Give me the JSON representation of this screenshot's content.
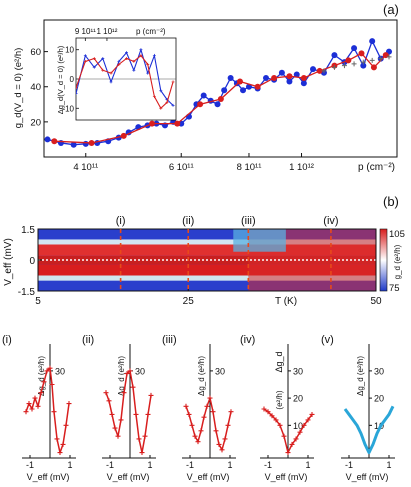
{
  "chart_data": [
    {
      "panel_label": "(a)",
      "type": "scatter",
      "ylabel": "g_d(V_d = 0) (e²/h)",
      "xlabel": "p (cm⁻²)",
      "x_scale": "log",
      "x_ticks": [
        {
          "value": 400000000000,
          "label": "4 10¹¹"
        },
        {
          "value": 600000000000,
          "label": "6 10¹¹"
        },
        {
          "value": 800000000000,
          "label": "8 10¹¹"
        },
        {
          "value": 1000000000000,
          "label": "1 10¹²"
        }
      ],
      "xlim": [
        335000000000,
        1500000000000
      ],
      "y_ticks": [
        20,
        40,
        60
      ],
      "ylim": [
        0,
        78
      ],
      "series": [
        {
          "color": "#1c2fd6",
          "marker": "circle",
          "x": [
            340000000000,
            360000000000,
            380000000000,
            400000000000,
            420000000000,
            440000000000,
            460000000000,
            480000000000,
            500000000000,
            520000000000,
            540000000000,
            560000000000,
            580000000000,
            600000000000,
            620000000000,
            640000000000,
            660000000000,
            680000000000,
            700000000000,
            720000000000,
            740000000000,
            760000000000,
            780000000000,
            800000000000,
            830000000000,
            860000000000,
            890000000000,
            920000000000,
            950000000000,
            980000000000,
            1010000000000,
            1050000000000,
            1100000000000,
            1150000000000,
            1200000000000,
            1250000000000,
            1300000000000,
            1350000000000,
            1400000000000,
            1450000000000
          ],
          "y": [
            10,
            8,
            7,
            7.5,
            8,
            9,
            11,
            14,
            17,
            18,
            19,
            18,
            20,
            19,
            23,
            30,
            35,
            32,
            30,
            38,
            45,
            42,
            38,
            40,
            39,
            45,
            44,
            48,
            43,
            47,
            42,
            50,
            48,
            58,
            54,
            62,
            52,
            66,
            56,
            60
          ]
        },
        {
          "color": "#d81e1e",
          "marker": "circle",
          "x": [
            350000000000,
            410000000000,
            470000000000,
            530000000000,
            590000000000,
            650000000000,
            710000000000,
            770000000000,
            830000000000,
            890000000000,
            950000000000,
            1010000000000,
            1080000000000,
            1150000000000,
            1220000000000,
            1290000000000,
            1360000000000,
            1430000000000
          ],
          "y": [
            9,
            8,
            12,
            19,
            19,
            30,
            33,
            43,
            40,
            45,
            46,
            45,
            49,
            52,
            55,
            59,
            51,
            58
          ]
        },
        {
          "color": "#666666",
          "marker": "plus",
          "x": [
            1100000000000,
            1150000000000,
            1200000000000,
            1250000000000,
            1300000000000,
            1350000000000,
            1400000000000,
            1450000000000
          ],
          "y": [
            49,
            51,
            52,
            53,
            54,
            55,
            56,
            57
          ]
        }
      ],
      "inset": {
        "ylabel": "Δg_d(V_d = 0) (e²/h)",
        "xlabel": "p (cm⁻²)",
        "x_ticks": [
          {
            "value": 900000000000,
            "label": "9 10¹¹"
          },
          {
            "value": 1000000000000,
            "label": "1 10¹²"
          }
        ],
        "xlim": [
          860000000000,
          1400000000000
        ],
        "y_ticks": [
          -10,
          0,
          10
        ],
        "ylim": [
          -14,
          14
        ],
        "series": [
          {
            "color": "#1c2fd6",
            "x": [
              860000000000,
              900000000000,
              940000000000,
              980000000000,
              1020000000000,
              1060000000000,
              1100000000000,
              1140000000000,
              1180000000000,
              1220000000000,
              1260000000000,
              1300000000000,
              1340000000000,
              1380000000000
            ],
            "y": [
              -5,
              8,
              4,
              7,
              -1,
              6,
              9,
              3,
              10,
              2,
              8,
              -4,
              -7,
              -9
            ]
          },
          {
            "color": "#d81e1e",
            "x": [
              860000000000,
              900000000000,
              940000000000,
              980000000000,
              1020000000000,
              1060000000000,
              1100000000000,
              1140000000000,
              1180000000000,
              1220000000000,
              1260000000000,
              1300000000000,
              1340000000000,
              1380000000000
            ],
            "y": [
              -3,
              6,
              7,
              3,
              2,
              5,
              7,
              6,
              8,
              5,
              -6,
              -10,
              -8,
              -1
            ]
          }
        ]
      }
    },
    {
      "panel_label": "(b)",
      "type": "heatmap",
      "xlabel": "T (K)",
      "ylabel": "V_eff (mV)",
      "x_ticks": [
        5,
        25,
        50
      ],
      "xlim": [
        5,
        50
      ],
      "y_ticks": [
        -1.5,
        0,
        1.5
      ],
      "ylim": [
        -1.5,
        1.5
      ],
      "colorbar": {
        "label": "g_d (e²/h)",
        "min": 75,
        "max": 105,
        "low_color": "#1d39c7",
        "mid_color": "#ffffff",
        "high_color": "#d81e1e"
      },
      "cut_labels": [
        "(i)",
        "(ii)",
        "(iii)",
        "(iv)"
      ],
      "cut_temperatures": [
        16,
        25,
        33,
        44
      ],
      "cut_color": "#e84a1a"
    },
    {
      "type": "line",
      "subplots": [
        {
          "label": "(i)",
          "color": "#d81e1e",
          "marker": "plus",
          "x": [
            -1.2,
            -1.05,
            -0.9,
            -0.75,
            -0.6,
            -0.45,
            -0.3,
            -0.15,
            0,
            0.1,
            0.2,
            0.35,
            0.5,
            0.65,
            0.8,
            0.95
          ],
          "y": [
            15,
            18,
            16,
            20,
            17,
            22,
            26,
            30,
            31,
            25,
            15,
            5,
            0,
            3,
            10,
            18
          ]
        },
        {
          "label": "(ii)",
          "color": "#d81e1e",
          "marker": "plus",
          "x": [
            -1.2,
            -1.05,
            -0.9,
            -0.75,
            -0.6,
            -0.45,
            -0.3,
            -0.15,
            0,
            0.15,
            0.3,
            0.45,
            0.6,
            0.75,
            0.9,
            1.05
          ],
          "y": [
            22,
            19,
            14,
            9,
            6,
            12,
            22,
            29,
            30,
            24,
            14,
            5,
            0,
            6,
            14,
            21
          ]
        },
        {
          "label": "(iii)",
          "color": "#d81e1e",
          "marker": "plus",
          "x": [
            -1.2,
            -1.05,
            -0.9,
            -0.75,
            -0.6,
            -0.45,
            -0.3,
            -0.15,
            0,
            0.15,
            0.3,
            0.45,
            0.6,
            0.75,
            0.9,
            1.05
          ],
          "y": [
            17,
            14,
            10,
            6,
            4,
            8,
            13,
            17,
            20,
            15,
            8,
            3,
            1,
            5,
            10,
            15
          ]
        },
        {
          "label": "(iv)",
          "color": "#d81e1e",
          "marker": "plus",
          "x": [
            -1.2,
            -1.0,
            -0.8,
            -0.6,
            -0.4,
            -0.2,
            0,
            0.2,
            0.4,
            0.6,
            0.8,
            1.0,
            1.2
          ],
          "y": [
            16,
            15,
            13.5,
            12,
            10,
            6,
            0,
            3,
            5,
            7.5,
            10,
            12,
            14
          ]
        },
        {
          "label": "(v)",
          "color": "#2aa6d8",
          "marker": "line",
          "x": [
            -1.2,
            -1.0,
            -0.8,
            -0.6,
            -0.4,
            -0.2,
            0,
            0.2,
            0.4,
            0.6,
            0.8,
            1.0,
            1.2
          ],
          "y": [
            16,
            14,
            12,
            10,
            7,
            3,
            0,
            3,
            7,
            10,
            12,
            14,
            17
          ]
        }
      ],
      "ylabel_i_iii": "Δg_d (e²/h)",
      "ylabel_iv": "Δg_d",
      "ylabel_iv_unit": "(e²/h)",
      "xlabel": "V_eff (mV)",
      "x_ticks": [
        -1,
        1
      ],
      "y_ticks_i_iii": [
        30
      ],
      "y_ticks_iv_v": [
        10,
        20,
        30
      ],
      "xlim": [
        -1.3,
        1.3
      ],
      "ylim": [
        -2,
        34
      ]
    }
  ]
}
